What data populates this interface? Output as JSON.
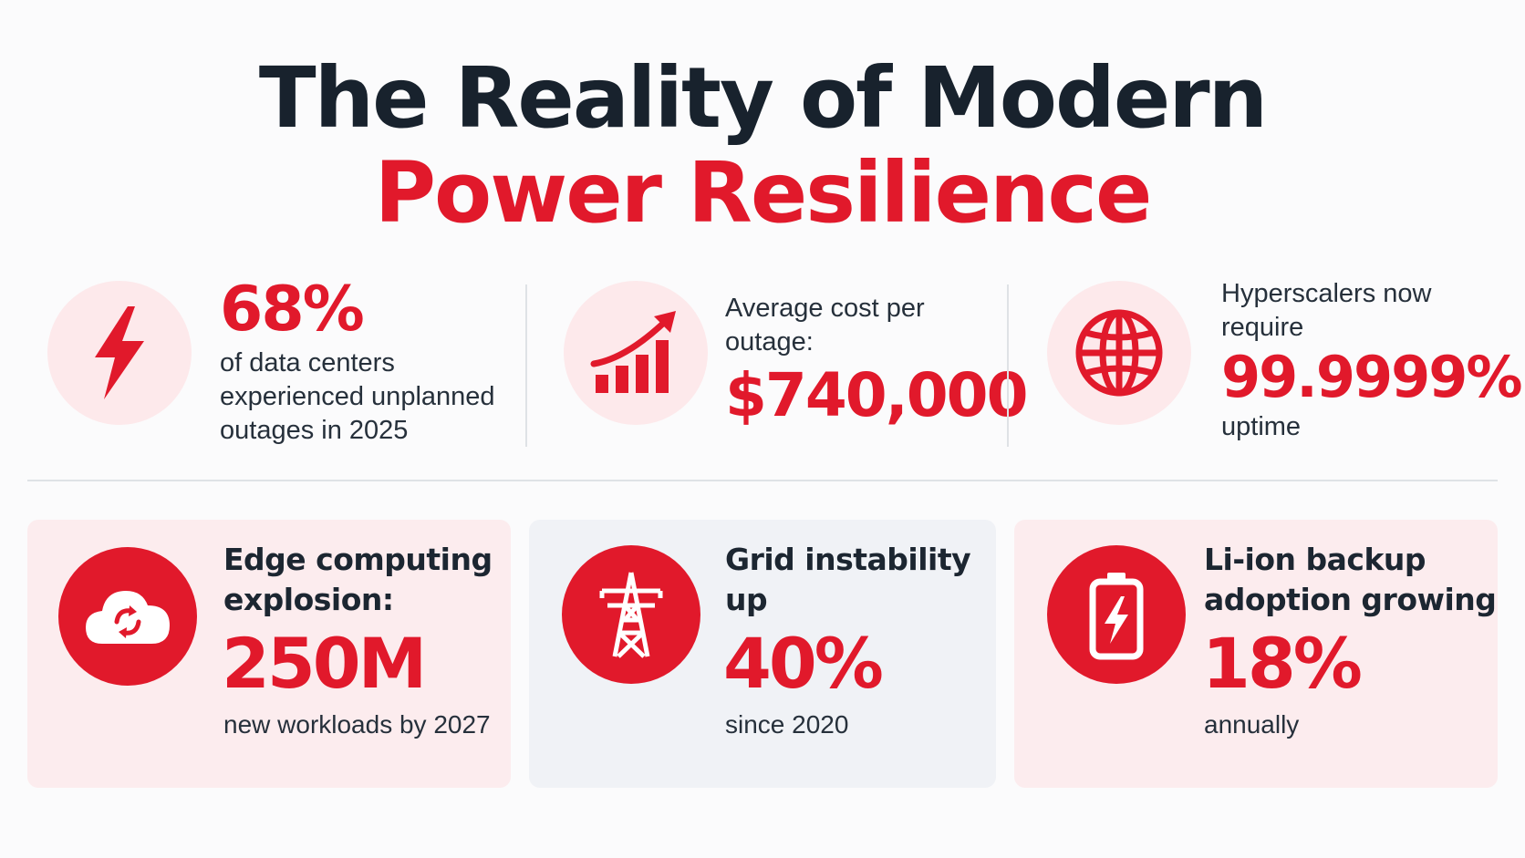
{
  "title": {
    "line1": "The Reality of Modern",
    "line2": "Power Resilience"
  },
  "colors": {
    "accent": "#e1192b",
    "dark": "#18222d",
    "light_circle": "#fde9eb"
  },
  "top_stats": [
    {
      "icon": "lightning-bolt-icon",
      "value": "68%",
      "line1": "of data centers",
      "line2": "experienced unplanned",
      "line3": "outages in 2025"
    },
    {
      "icon": "rising-bar-chart-icon",
      "line1": "Average cost per",
      "line2": "outage:",
      "value": "$740,000"
    },
    {
      "icon": "globe-icon",
      "line1": "Hyperscalers now",
      "line2": "require",
      "value": "99.9999%",
      "line3": "uptime"
    }
  ],
  "cards": [
    {
      "icon": "cloud-sync-icon",
      "head1": "Edge computing",
      "head2": "explosion:",
      "value": "250M",
      "sub": "new workloads by 2027"
    },
    {
      "icon": "power-tower-icon",
      "head1": "Grid instability",
      "head2": "up",
      "value": "40%",
      "sub": "since 2020"
    },
    {
      "icon": "battery-charging-icon",
      "head1": "Li-ion backup",
      "head2": "adoption growing",
      "value": "18%",
      "sub": "annually"
    }
  ]
}
